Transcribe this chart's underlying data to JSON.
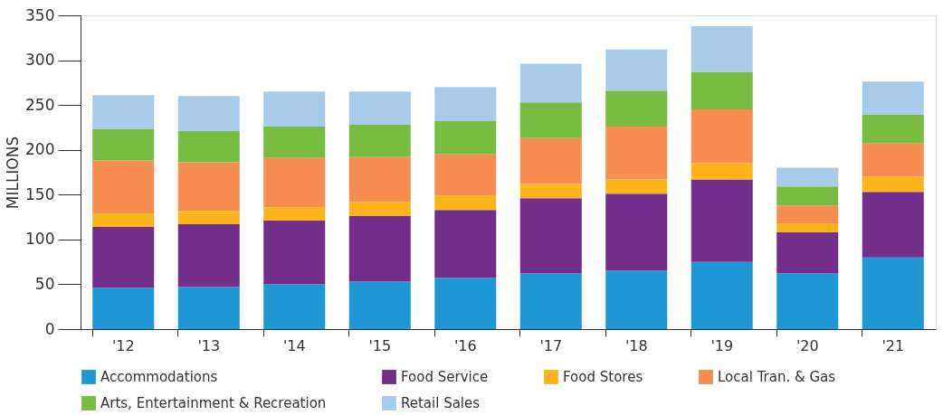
{
  "chart_data": {
    "type": "bar",
    "stacked": true,
    "ylabel": "MILLIONS",
    "categories": [
      "'12",
      "'13",
      "'14",
      "'15",
      "'16",
      "'17",
      "'18",
      "'19",
      "'20",
      "'21"
    ],
    "series": [
      {
        "name": "Accommodations",
        "color": "#1e98d4",
        "values": [
          46,
          47,
          50,
          53,
          57,
          62,
          65,
          75,
          62,
          80
        ]
      },
      {
        "name": "Food Service",
        "color": "#732d8b",
        "values": [
          68,
          70,
          71,
          73,
          76,
          84,
          86,
          92,
          46,
          73
        ]
      },
      {
        "name": "Food Stores",
        "color": "#fbb41a",
        "values": [
          15,
          15,
          15,
          16,
          16,
          16,
          16,
          18,
          10,
          17
        ]
      },
      {
        "name": "Local Tran. & Gas",
        "color": "#f58e50",
        "values": [
          59,
          54,
          55,
          50,
          46,
          51,
          59,
          60,
          20,
          37
        ]
      },
      {
        "name": "Arts, Entertainment & Recreation",
        "color": "#78bc42",
        "values": [
          35,
          35,
          35,
          36,
          37,
          40,
          40,
          42,
          21,
          32
        ]
      },
      {
        "name": "Retail Sales",
        "color": "#a9cbea",
        "values": [
          38,
          39,
          39,
          37,
          38,
          43,
          46,
          51,
          21,
          37
        ]
      }
    ],
    "ylim": [
      0,
      350
    ],
    "yticks": [
      0,
      50,
      100,
      150,
      200,
      250,
      300,
      350
    ],
    "grid": false,
    "legend": "bottom"
  }
}
